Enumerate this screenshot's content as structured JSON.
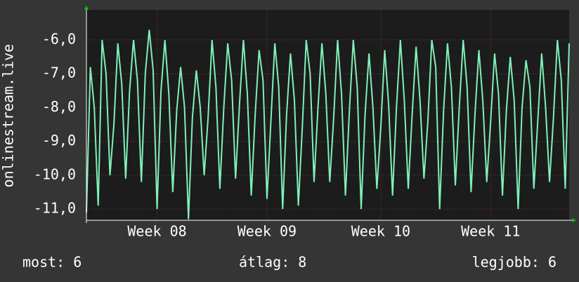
{
  "chart_data": {
    "type": "line",
    "ylabel": "onlinestream.live",
    "categories": [
      null,
      null,
      null,
      null,
      null,
      null,
      null,
      null,
      null,
      null,
      null,
      null,
      null,
      null,
      null,
      null,
      null,
      null,
      "Week 08",
      null,
      null,
      null,
      null,
      null,
      null,
      null,
      null,
      null,
      null,
      null,
      null,
      null,
      null,
      null,
      null,
      null,
      null,
      null,
      null,
      null,
      null,
      null,
      null,
      null,
      null,
      null,
      "Week 09",
      null,
      null,
      null,
      null,
      null,
      null,
      null,
      null,
      null,
      null,
      null,
      null,
      null,
      null,
      null,
      null,
      null,
      null,
      null,
      null,
      null,
      null,
      null,
      null,
      null,
      null,
      null,
      null,
      "Week 10",
      null,
      null,
      null,
      null,
      null,
      null,
      null,
      null,
      null,
      null,
      null,
      null,
      null,
      null,
      null,
      null,
      null,
      null,
      null,
      null,
      null,
      null,
      null,
      null,
      null,
      null,
      null,
      "Week 11",
      null,
      null,
      null,
      null,
      null,
      null,
      null,
      null,
      null,
      null,
      null,
      null,
      null,
      null,
      null,
      null,
      null,
      null,
      null,
      null
    ],
    "series": [
      {
        "name": "onlinestream.live",
        "color": "#7ff0b8",
        "values": [
          -11.1,
          -6.8,
          -8.0,
          -10.9,
          -6.0,
          -7.0,
          -10.0,
          -8.5,
          -6.1,
          -7.3,
          -10.1,
          -7.5,
          -6.0,
          -7.2,
          -10.2,
          -7.0,
          -5.7,
          -6.9,
          -11.0,
          -7.5,
          -6.0,
          -7.6,
          -10.5,
          -8.1,
          -6.8,
          -8.0,
          -11.3,
          -8.3,
          -6.9,
          -8.0,
          -10.0,
          -8.3,
          -6.0,
          -7.4,
          -10.4,
          -8.0,
          -6.1,
          -7.2,
          -10.1,
          -7.9,
          -6.0,
          -7.6,
          -10.6,
          -8.2,
          -6.3,
          -7.2,
          -10.7,
          -8.4,
          -6.1,
          -7.4,
          -11.0,
          -8.2,
          -6.4,
          -7.8,
          -10.9,
          -8.6,
          -6.0,
          -7.0,
          -10.2,
          -8.0,
          -6.1,
          -7.6,
          -10.2,
          -8.3,
          -6.0,
          -7.6,
          -10.6,
          -8.1,
          -6.0,
          -7.4,
          -11.0,
          -8.2,
          -6.4,
          -8.0,
          -10.4,
          -8.6,
          -6.3,
          -7.9,
          -10.6,
          -8.0,
          -6.0,
          -7.8,
          -10.4,
          -8.2,
          -6.2,
          -7.8,
          -10.1,
          -8.4,
          -6.0,
          -6.8,
          -11.0,
          -8.1,
          -6.1,
          -7.4,
          -10.3,
          -8.0,
          -6.0,
          -7.4,
          -10.5,
          -8.2,
          -6.3,
          -7.8,
          -10.2,
          -8.4,
          -6.4,
          -7.6,
          -10.6,
          -8.1,
          -6.5,
          -7.8,
          -11.0,
          -8.0,
          -6.6,
          -7.4,
          -10.4,
          -8.4,
          -6.4,
          -8.0,
          -10.2,
          -8.3,
          -6.0,
          -7.2,
          -10.4,
          -6.1
        ]
      }
    ],
    "ylim": [
      -11.33,
      -5.11
    ],
    "yticks": [
      {
        "value": -11,
        "label": "-11,0"
      },
      {
        "value": -10,
        "label": "-10,0"
      },
      {
        "value": -9,
        "label": "-9,0"
      },
      {
        "value": -8,
        "label": "-8,0"
      },
      {
        "value": -7,
        "label": "-7,0"
      },
      {
        "value": -6,
        "label": "-6,0"
      }
    ],
    "grid": true,
    "footer": [
      "most: 6",
      "átlag: 8",
      "legjobb: 6"
    ]
  }
}
